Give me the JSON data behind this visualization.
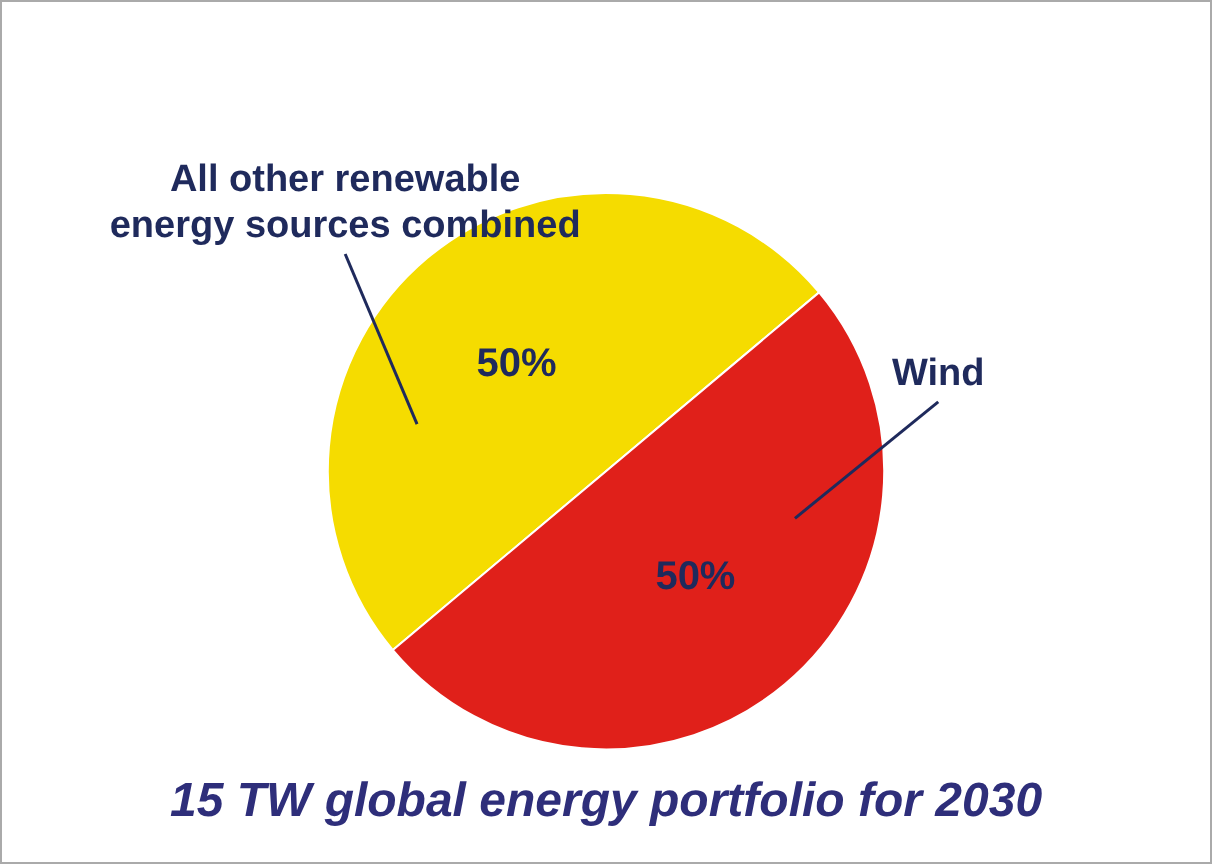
{
  "chart_data": {
    "type": "pie",
    "title": "15 TW global energy portfolio for 2030",
    "categories": [
      "All other renewable energy sources combined",
      "Wind"
    ],
    "values": [
      50,
      50
    ],
    "colors": [
      "#f5dc00",
      "#e0201a"
    ],
    "value_labels": [
      "50%",
      "50%"
    ],
    "legend": false
  }
}
